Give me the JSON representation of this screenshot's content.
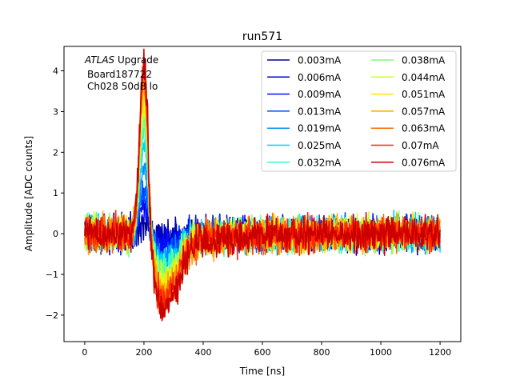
{
  "chart_data": {
    "type": "line",
    "title": "run571",
    "xlabel": "Time [ns]",
    "ylabel": "Amplitude [ADC counts]",
    "xlim": [
      -70,
      1270
    ],
    "ylim": [
      -2.65,
      4.6
    ],
    "x_ticks": [
      0,
      200,
      400,
      600,
      800,
      1000,
      1200
    ],
    "y_ticks": [
      -2,
      -1,
      0,
      1,
      2,
      3,
      4
    ],
    "x_range": [
      0,
      1200
    ],
    "grid": false,
    "legend": {
      "placement": "top-right",
      "columns": 2
    },
    "annotations": {
      "line1_italic": "ATLAS",
      "line1_rest": " Upgrade",
      "line2": "Board187722",
      "line3": "Ch028 50dB lo"
    },
    "series": [
      {
        "name": "0.003mA",
        "color": "#00008f",
        "peak": 0.28,
        "undershoot": -0.12,
        "noise": 0.34
      },
      {
        "name": "0.006mA",
        "color": "#0000cc",
        "peak": 0.55,
        "undershoot": -0.22,
        "noise": 0.34
      },
      {
        "name": "0.009mA",
        "color": "#0010ff",
        "peak": 0.85,
        "undershoot": -0.32,
        "noise": 0.34
      },
      {
        "name": "0.013mA",
        "color": "#0050ff",
        "peak": 1.2,
        "undershoot": -0.45,
        "noise": 0.35
      },
      {
        "name": "0.019mA",
        "color": "#0090ff",
        "peak": 1.7,
        "undershoot": -0.62,
        "noise": 0.35
      },
      {
        "name": "0.025mA",
        "color": "#00d0ff",
        "peak": 2.2,
        "undershoot": -0.8,
        "noise": 0.35
      },
      {
        "name": "0.032mA",
        "color": "#30ffc9",
        "peak": 2.55,
        "undershoot": -0.92,
        "noise": 0.35
      },
      {
        "name": "0.038mA",
        "color": "#7dff7a",
        "peak": 2.9,
        "undershoot": -1.05,
        "noise": 0.35
      },
      {
        "name": "0.044mA",
        "color": "#c9ff2e",
        "peak": 3.2,
        "undershoot": -1.18,
        "noise": 0.35
      },
      {
        "name": "0.051mA",
        "color": "#ffe500",
        "peak": 3.5,
        "undershoot": -1.3,
        "noise": 0.36
      },
      {
        "name": "0.057mA",
        "color": "#ffa800",
        "peak": 3.75,
        "undershoot": -1.42,
        "noise": 0.36
      },
      {
        "name": "0.063mA",
        "color": "#ff6800",
        "peak": 3.95,
        "undershoot": -1.55,
        "noise": 0.36
      },
      {
        "name": "0.07mA",
        "color": "#ff2500",
        "peak": 4.15,
        "undershoot": -1.68,
        "noise": 0.36
      },
      {
        "name": "0.076mA",
        "color": "#cc0000",
        "peak": 4.3,
        "undershoot": -1.8,
        "noise": 0.36
      }
    ]
  }
}
